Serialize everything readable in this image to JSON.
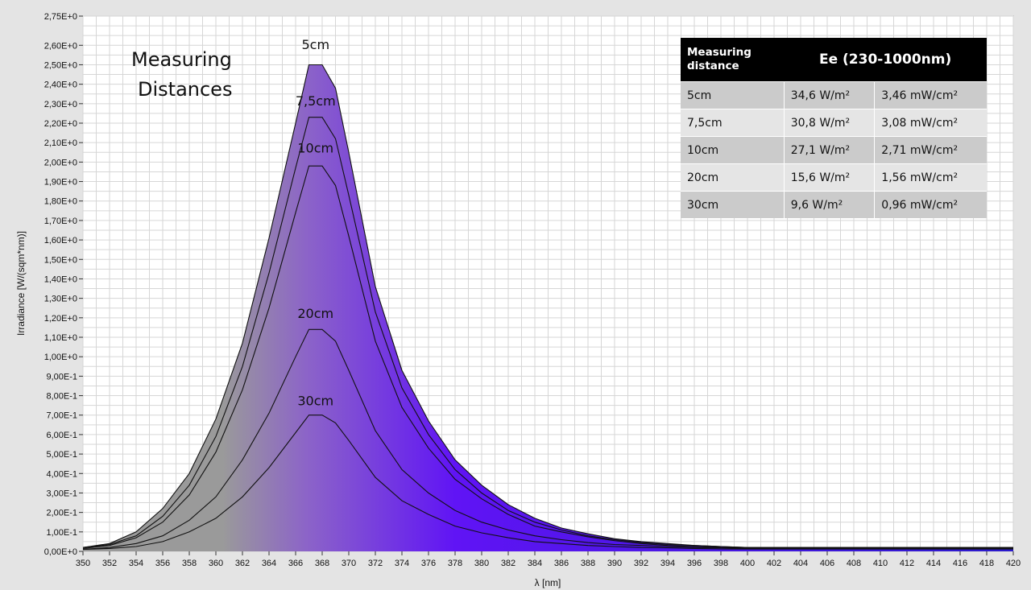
{
  "chart_data": {
    "type": "area",
    "title": "Measuring Distances",
    "title_lines": [
      "Measuring",
      "Distances"
    ],
    "xlabel": "λ [nm]",
    "ylabel": "Irradiance [W/(sqm*nm)]",
    "xlim": [
      350,
      420
    ],
    "ylim": [
      0,
      2.75
    ],
    "grid": true,
    "x_ticks": [
      350,
      352,
      354,
      356,
      358,
      360,
      362,
      364,
      366,
      368,
      370,
      372,
      374,
      376,
      378,
      380,
      382,
      384,
      386,
      388,
      390,
      392,
      394,
      396,
      398,
      400,
      402,
      404,
      406,
      408,
      410,
      412,
      414,
      416,
      418,
      420
    ],
    "y_tick_values": [
      0,
      0.1,
      0.2,
      0.3,
      0.4,
      0.5,
      0.6,
      0.7,
      0.8,
      0.9,
      1.0,
      1.1,
      1.2,
      1.3,
      1.4,
      1.5,
      1.6,
      1.7,
      1.8,
      1.9,
      2.0,
      2.1,
      2.2,
      2.3,
      2.4,
      2.5,
      2.6,
      2.75
    ],
    "y_tick_labels": [
      "0,00E+0",
      "1,00E-1",
      "2,00E-1",
      "3,00E-1",
      "4,00E-1",
      "5,00E-1",
      "6,00E-1",
      "7,00E-1",
      "8,00E-1",
      "9,00E-1",
      "1,00E+0",
      "1,10E+0",
      "1,20E+0",
      "1,30E+0",
      "1,40E+0",
      "1,50E+0",
      "1,60E+0",
      "1,70E+0",
      "1,80E+0",
      "1,90E+0",
      "2,00E+0",
      "2,10E+0",
      "2,20E+0",
      "2,30E+0",
      "2,40E+0",
      "2,50E+0",
      "2,60E+0",
      "2,75E+0"
    ],
    "x": [
      350,
      352,
      354,
      356,
      358,
      360,
      362,
      364,
      366,
      367,
      368,
      369,
      370,
      372,
      374,
      376,
      378,
      380,
      382,
      384,
      386,
      388,
      390,
      392,
      394,
      396,
      398,
      400,
      402,
      404,
      406,
      408,
      410,
      412,
      414,
      416,
      418,
      420
    ],
    "series": [
      {
        "name": "5cm",
        "label_at": [
          367.5,
          2.58
        ],
        "values": [
          0.02,
          0.04,
          0.1,
          0.22,
          0.4,
          0.68,
          1.07,
          1.61,
          2.2,
          2.5,
          2.5,
          2.38,
          2.05,
          1.36,
          0.93,
          0.67,
          0.47,
          0.34,
          0.24,
          0.17,
          0.12,
          0.09,
          0.065,
          0.05,
          0.04,
          0.03,
          0.025,
          0.02,
          0.02,
          0.02,
          0.02,
          0.02,
          0.02,
          0.02,
          0.02,
          0.02,
          0.02,
          0.02
        ]
      },
      {
        "name": "7,5cm",
        "label_at": [
          367.5,
          2.29
        ],
        "values": [
          0.02,
          0.035,
          0.08,
          0.18,
          0.34,
          0.59,
          0.95,
          1.43,
          1.97,
          2.23,
          2.23,
          2.12,
          1.83,
          1.23,
          0.84,
          0.6,
          0.42,
          0.3,
          0.21,
          0.15,
          0.11,
          0.08,
          0.06,
          0.045,
          0.035,
          0.03,
          0.025,
          0.02,
          0.02,
          0.02,
          0.02,
          0.02,
          0.02,
          0.02,
          0.02,
          0.02,
          0.02,
          0.02
        ]
      },
      {
        "name": "10cm",
        "label_at": [
          367.5,
          2.05
        ],
        "values": [
          0.015,
          0.03,
          0.07,
          0.15,
          0.29,
          0.51,
          0.83,
          1.25,
          1.74,
          1.98,
          1.98,
          1.88,
          1.62,
          1.08,
          0.74,
          0.53,
          0.37,
          0.27,
          0.19,
          0.13,
          0.1,
          0.075,
          0.055,
          0.04,
          0.03,
          0.025,
          0.02,
          0.018,
          0.018,
          0.018,
          0.018,
          0.018,
          0.018,
          0.018,
          0.018,
          0.018,
          0.018,
          0.018
        ]
      },
      {
        "name": "20cm",
        "label_at": [
          367.5,
          1.2
        ],
        "values": [
          0.01,
          0.02,
          0.04,
          0.08,
          0.16,
          0.28,
          0.47,
          0.71,
          1.0,
          1.14,
          1.14,
          1.08,
          0.93,
          0.62,
          0.42,
          0.3,
          0.21,
          0.15,
          0.11,
          0.08,
          0.06,
          0.045,
          0.035,
          0.03,
          0.025,
          0.02,
          0.018,
          0.015,
          0.015,
          0.015,
          0.015,
          0.015,
          0.015,
          0.015,
          0.015,
          0.015,
          0.015,
          0.015
        ]
      },
      {
        "name": "30cm",
        "label_at": [
          367.5,
          0.75
        ],
        "values": [
          0.01,
          0.015,
          0.025,
          0.05,
          0.1,
          0.17,
          0.28,
          0.43,
          0.61,
          0.7,
          0.7,
          0.66,
          0.57,
          0.38,
          0.26,
          0.19,
          0.13,
          0.095,
          0.07,
          0.05,
          0.04,
          0.03,
          0.025,
          0.02,
          0.018,
          0.015,
          0.013,
          0.012,
          0.012,
          0.012,
          0.012,
          0.012,
          0.012,
          0.012,
          0.012,
          0.012,
          0.012,
          0.012
        ]
      }
    ],
    "fill_colors": {
      "start": "#9a9a9a",
      "mid": "#8c64c8",
      "end": "#6014f5",
      "tail": "#2a1acb"
    },
    "table": {
      "headers": [
        "Measuring distance",
        "Ee  (230-1000nm)"
      ],
      "rows": [
        [
          "5cm",
          "34,6 W/m²",
          "3,46 mW/cm²"
        ],
        [
          "7,5cm",
          "30,8 W/m²",
          "3,08 mW/cm²"
        ],
        [
          "10cm",
          "27,1 W/m²",
          "2,71 mW/cm²"
        ],
        [
          "20cm",
          "15,6 W/m²",
          "1,56 mW/cm²"
        ],
        [
          "30cm",
          "9,6 W/m²",
          "0,96 mW/cm²"
        ]
      ]
    }
  }
}
